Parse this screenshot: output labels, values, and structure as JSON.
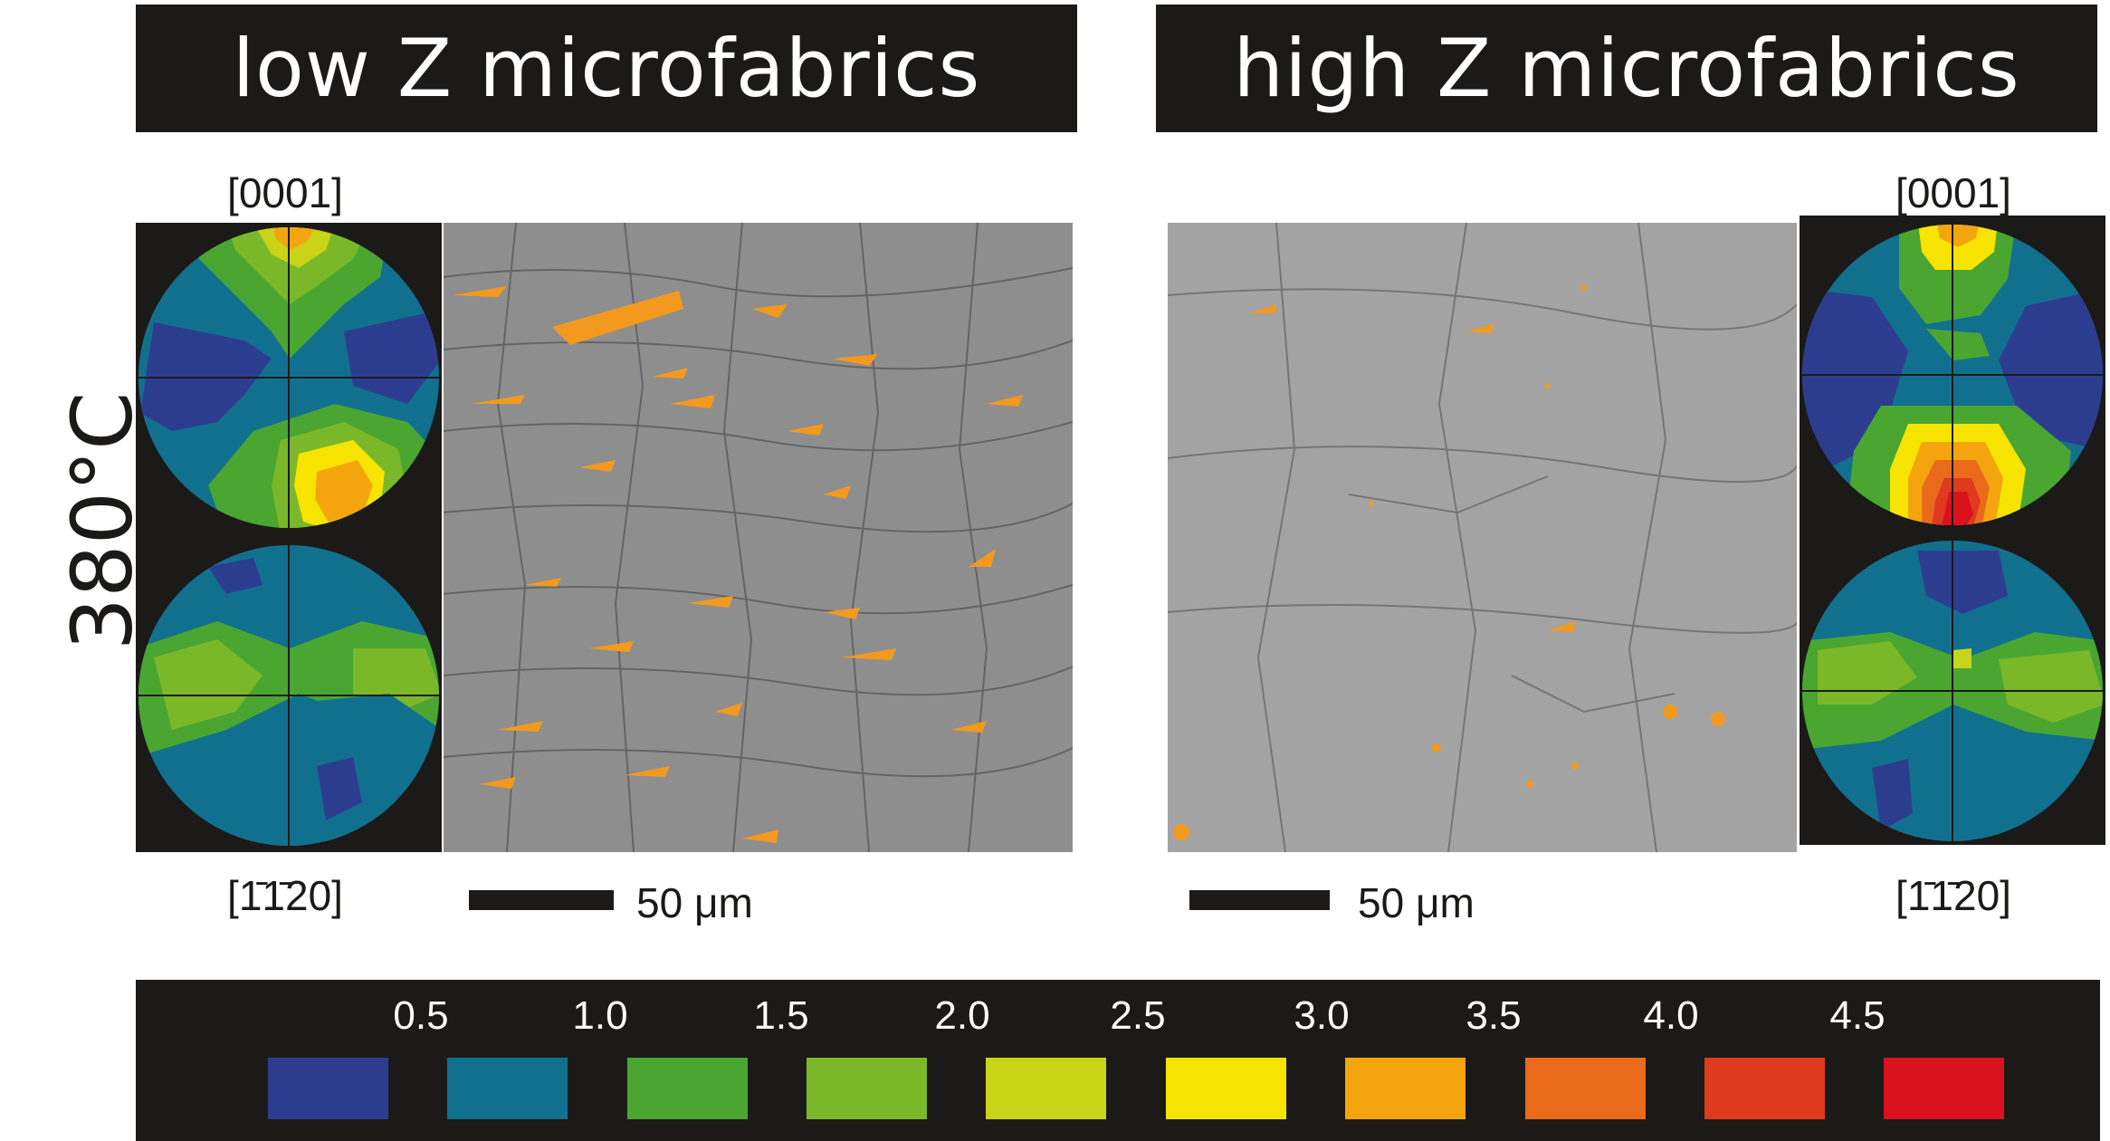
{
  "figure": {
    "headers": {
      "left": "low Z microfabrics",
      "right": "high Z microfabrics"
    },
    "temperature": "380°C",
    "left_panel": {
      "pole_top_label": "[0001]",
      "pole_bottom_label": "[1̄1̄20]",
      "scale_label": "50 μm"
    },
    "right_panel": {
      "pole_top_label": "[0001]",
      "pole_bottom_label": "[1̄1̄20]",
      "scale_label": "50 μm"
    },
    "legend": {
      "ticks": [
        "0.5",
        "1.0",
        "1.5",
        "2.0",
        "2.5",
        "3.0",
        "3.5",
        "4.0",
        "4.5"
      ],
      "colors": [
        "#2c3d8f",
        "#12708f",
        "#4aa631",
        "#7ab82a",
        "#c9d418",
        "#f6e400",
        "#f4a50e",
        "#ea6a1b",
        "#e03a1e",
        "#d9121e"
      ]
    }
  }
}
